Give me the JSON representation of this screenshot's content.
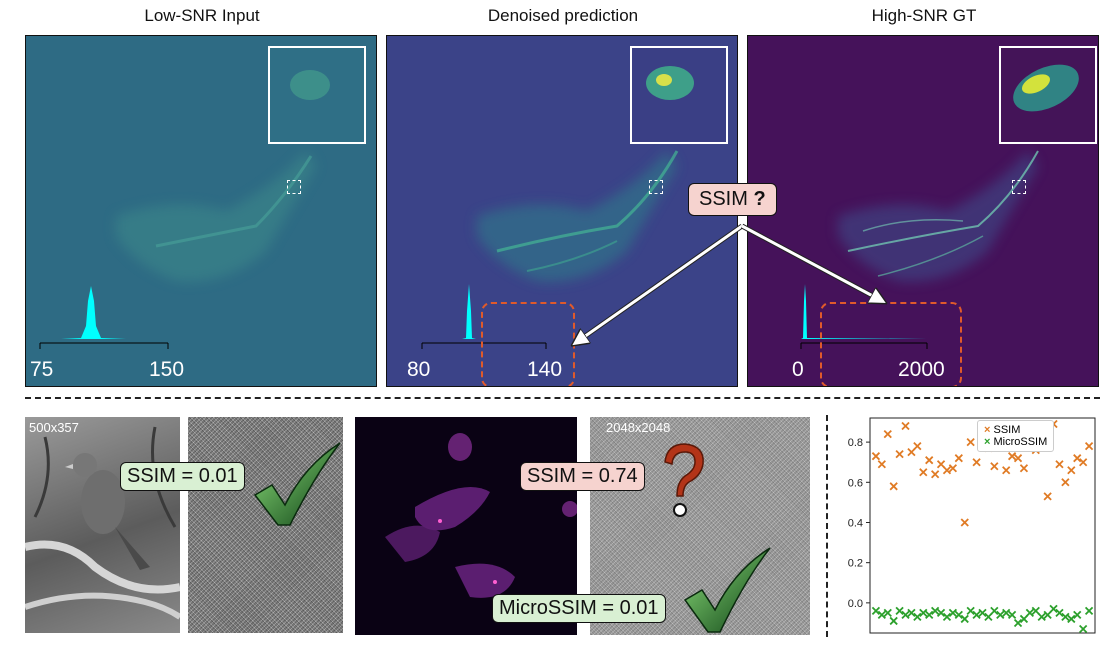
{
  "top_row": {
    "panels": [
      {
        "title": "Low-SNR Input",
        "axis_ticks": [
          "75",
          "150"
        ]
      },
      {
        "title": "Denoised prediction",
        "axis_ticks": [
          "80",
          "140"
        ]
      },
      {
        "title": "High-SNR GT",
        "axis_ticks": [
          "0",
          "2000"
        ]
      }
    ],
    "callout": {
      "text": "SSIM",
      "mark": "?"
    }
  },
  "bottom_row": {
    "example1": {
      "dims": "500x357",
      "ssim_label": "SSIM = 0.01",
      "verdict_icon": "check-icon"
    },
    "example2": {
      "dims": "2048x2048",
      "ssim_label": "SSIM = 0.74",
      "microssim_label": "MicroSSIM = 0.01",
      "ssim_icon": "question-icon",
      "microssim_icon": "check-icon"
    }
  },
  "colors": {
    "ssim": "#e07b25",
    "microssim": "#2ca02c",
    "cyan": "#00ffff",
    "dash_red": "#e05a2b"
  },
  "chart_data": {
    "type": "scatter",
    "ylim": [
      -0.15,
      0.92
    ],
    "yticks": [
      "0.8",
      "0.6",
      "0.4",
      "0.2",
      "0.0"
    ],
    "grid": false,
    "legend_position": "top-right",
    "series": [
      {
        "name": "SSIM",
        "marker": "x",
        "x": [
          1,
          2,
          3,
          4,
          5,
          6,
          7,
          8,
          9,
          10,
          11,
          12,
          13,
          14,
          15,
          16,
          17,
          18,
          19,
          20,
          21,
          22,
          23,
          24,
          25,
          26,
          27,
          28,
          29,
          30,
          31,
          32,
          33,
          34,
          35,
          36,
          37
        ],
        "y": [
          0.73,
          0.69,
          0.84,
          0.58,
          0.74,
          0.88,
          0.75,
          0.78,
          0.65,
          0.71,
          0.64,
          0.69,
          0.66,
          0.67,
          0.72,
          0.4,
          0.8,
          0.7,
          0.82,
          0.77,
          0.68,
          0.78,
          0.66,
          0.73,
          0.72,
          0.67,
          0.79,
          0.76,
          0.83,
          0.53,
          0.89,
          0.69,
          0.6,
          0.66,
          0.72,
          0.7,
          0.78
        ]
      },
      {
        "name": "MicroSSIM",
        "marker": "x",
        "x": [
          1,
          2,
          3,
          4,
          5,
          6,
          7,
          8,
          9,
          10,
          11,
          12,
          13,
          14,
          15,
          16,
          17,
          18,
          19,
          20,
          21,
          22,
          23,
          24,
          25,
          26,
          27,
          28,
          29,
          30,
          31,
          32,
          33,
          34,
          35,
          36,
          37
        ],
        "y": [
          -0.04,
          -0.06,
          -0.05,
          -0.09,
          -0.04,
          -0.06,
          -0.05,
          -0.07,
          -0.05,
          -0.06,
          -0.04,
          -0.05,
          -0.07,
          -0.05,
          -0.06,
          -0.08,
          -0.04,
          -0.06,
          -0.05,
          -0.07,
          -0.04,
          -0.06,
          -0.05,
          -0.06,
          -0.1,
          -0.08,
          -0.05,
          -0.04,
          -0.07,
          -0.06,
          -0.03,
          -0.05,
          -0.07,
          -0.08,
          -0.06,
          -0.13,
          -0.04
        ]
      }
    ]
  }
}
